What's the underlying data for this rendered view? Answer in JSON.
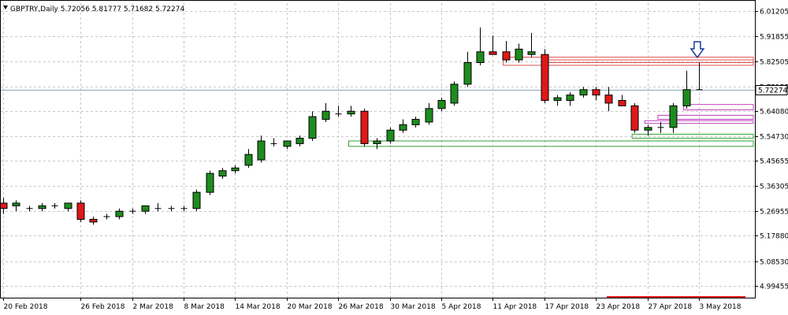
{
  "chart_data": {
    "type": "candlestick",
    "title": "GBPTRY,Daily  5.72056 5.81777 5.71682 5.72274",
    "last_price_label": "5.72274",
    "colors": {
      "background": "#ffffff",
      "grid": "#c8c8c8",
      "bull_fill": "#1e8c1e",
      "bear_fill": "#e01818",
      "wick": "#000000",
      "price_line": "#8fa8b8",
      "zone_red": "#e05050",
      "zone_magenta": "#c040c0",
      "zone_green": "#30a030",
      "bottom_line": "#e01818",
      "arrow": "#1a3ca0"
    },
    "ylim": [
      4.95,
      6.04
    ],
    "y_ticks": [
      "6.01205",
      "5.91855",
      "5.82505",
      "5.73155",
      "5.64080",
      "5.54730",
      "5.45655",
      "5.36305",
      "5.26955",
      "5.17880",
      "5.08530",
      "4.99455"
    ],
    "y_tick_values": [
      6.01205,
      5.91855,
      5.82505,
      5.73155,
      5.6408,
      5.5473,
      5.45655,
      5.36305,
      5.26955,
      5.1788,
      5.0853,
      4.99455
    ],
    "x_labels": [
      {
        "index": 0,
        "label": "20 Feb 2018"
      },
      {
        "index": 6,
        "label": "26 Feb 2018"
      },
      {
        "index": 10,
        "label": "2 Mar 2018"
      },
      {
        "index": 14,
        "label": "8 Mar 2018"
      },
      {
        "index": 18,
        "label": "14 Mar 2018"
      },
      {
        "index": 22,
        "label": "20 Mar 2018"
      },
      {
        "index": 26,
        "label": "26 Mar 2018"
      },
      {
        "index": 30,
        "label": "30 Mar 2018"
      },
      {
        "index": 34,
        "label": "5 Apr 2018"
      },
      {
        "index": 38,
        "label": "11 Apr 2018"
      },
      {
        "index": 42,
        "label": "17 Apr 2018"
      },
      {
        "index": 46,
        "label": "23 Apr 2018"
      },
      {
        "index": 50,
        "label": "27 Apr 2018"
      },
      {
        "index": 54,
        "label": "3 May 2018"
      }
    ],
    "candles": [
      {
        "o": 5.3,
        "h": 5.32,
        "l": 5.26,
        "c": 5.28
      },
      {
        "o": 5.29,
        "h": 5.31,
        "l": 5.27,
        "c": 5.3
      },
      {
        "o": 5.28,
        "h": 5.29,
        "l": 5.27,
        "c": 5.28
      },
      {
        "o": 5.28,
        "h": 5.3,
        "l": 5.27,
        "c": 5.29
      },
      {
        "o": 5.29,
        "h": 5.3,
        "l": 5.28,
        "c": 5.29
      },
      {
        "o": 5.28,
        "h": 5.3,
        "l": 5.27,
        "c": 5.3
      },
      {
        "o": 5.3,
        "h": 5.31,
        "l": 5.23,
        "c": 5.24
      },
      {
        "o": 5.24,
        "h": 5.25,
        "l": 5.22,
        "c": 5.23
      },
      {
        "o": 5.25,
        "h": 5.26,
        "l": 5.24,
        "c": 5.25
      },
      {
        "o": 5.25,
        "h": 5.28,
        "l": 5.24,
        "c": 5.27
      },
      {
        "o": 5.27,
        "h": 5.28,
        "l": 5.26,
        "c": 5.27
      },
      {
        "o": 5.27,
        "h": 5.29,
        "l": 5.26,
        "c": 5.29
      },
      {
        "o": 5.28,
        "h": 5.3,
        "l": 5.27,
        "c": 5.28
      },
      {
        "o": 5.28,
        "h": 5.29,
        "l": 5.27,
        "c": 5.28
      },
      {
        "o": 5.28,
        "h": 5.29,
        "l": 5.27,
        "c": 5.28
      },
      {
        "o": 5.28,
        "h": 5.35,
        "l": 5.27,
        "c": 5.34
      },
      {
        "o": 5.34,
        "h": 5.42,
        "l": 5.33,
        "c": 5.41
      },
      {
        "o": 5.4,
        "h": 5.43,
        "l": 5.39,
        "c": 5.42
      },
      {
        "o": 5.42,
        "h": 5.44,
        "l": 5.41,
        "c": 5.43
      },
      {
        "o": 5.44,
        "h": 5.5,
        "l": 5.43,
        "c": 5.48
      },
      {
        "o": 5.46,
        "h": 5.55,
        "l": 5.45,
        "c": 5.53
      },
      {
        "o": 5.52,
        "h": 5.54,
        "l": 5.51,
        "c": 5.52
      },
      {
        "o": 5.51,
        "h": 5.53,
        "l": 5.5,
        "c": 5.53
      },
      {
        "o": 5.52,
        "h": 5.55,
        "l": 5.51,
        "c": 5.54
      },
      {
        "o": 5.54,
        "h": 5.64,
        "l": 5.53,
        "c": 5.62
      },
      {
        "o": 5.61,
        "h": 5.67,
        "l": 5.6,
        "c": 5.64
      },
      {
        "o": 5.63,
        "h": 5.66,
        "l": 5.62,
        "c": 5.63
      },
      {
        "o": 5.63,
        "h": 5.66,
        "l": 5.62,
        "c": 5.64
      },
      {
        "o": 5.64,
        "h": 5.65,
        "l": 5.51,
        "c": 5.52
      },
      {
        "o": 5.52,
        "h": 5.54,
        "l": 5.5,
        "c": 5.53
      },
      {
        "o": 5.53,
        "h": 5.58,
        "l": 5.52,
        "c": 5.57
      },
      {
        "o": 5.57,
        "h": 5.61,
        "l": 5.56,
        "c": 5.59
      },
      {
        "o": 5.59,
        "h": 5.62,
        "l": 5.58,
        "c": 5.61
      },
      {
        "o": 5.6,
        "h": 5.67,
        "l": 5.59,
        "c": 5.65
      },
      {
        "o": 5.65,
        "h": 5.69,
        "l": 5.64,
        "c": 5.68
      },
      {
        "o": 5.67,
        "h": 5.75,
        "l": 5.66,
        "c": 5.74
      },
      {
        "o": 5.74,
        "h": 5.86,
        "l": 5.73,
        "c": 5.82
      },
      {
        "o": 5.82,
        "h": 5.95,
        "l": 5.81,
        "c": 5.86
      },
      {
        "o": 5.86,
        "h": 5.92,
        "l": 5.85,
        "c": 5.85
      },
      {
        "o": 5.86,
        "h": 5.9,
        "l": 5.82,
        "c": 5.83
      },
      {
        "o": 5.83,
        "h": 5.89,
        "l": 5.82,
        "c": 5.87
      },
      {
        "o": 5.85,
        "h": 5.93,
        "l": 5.84,
        "c": 5.86
      },
      {
        "o": 5.85,
        "h": 5.87,
        "l": 5.67,
        "c": 5.68
      },
      {
        "o": 5.68,
        "h": 5.7,
        "l": 5.66,
        "c": 5.69
      },
      {
        "o": 5.68,
        "h": 5.71,
        "l": 5.66,
        "c": 5.7
      },
      {
        "o": 5.7,
        "h": 5.73,
        "l": 5.69,
        "c": 5.72
      },
      {
        "o": 5.72,
        "h": 5.73,
        "l": 5.68,
        "c": 5.7
      },
      {
        "o": 5.7,
        "h": 5.73,
        "l": 5.64,
        "c": 5.67
      },
      {
        "o": 5.68,
        "h": 5.7,
        "l": 5.66,
        "c": 5.66
      },
      {
        "o": 5.66,
        "h": 5.67,
        "l": 5.56,
        "c": 5.57
      },
      {
        "o": 5.57,
        "h": 5.59,
        "l": 5.55,
        "c": 5.58
      },
      {
        "o": 5.58,
        "h": 5.6,
        "l": 5.56,
        "c": 5.58
      },
      {
        "o": 5.58,
        "h": 5.67,
        "l": 5.56,
        "c": 5.66
      },
      {
        "o": 5.66,
        "h": 5.79,
        "l": 5.65,
        "c": 5.72
      },
      {
        "o": 5.72,
        "h": 5.82,
        "l": 5.72,
        "c": 5.72
      }
    ],
    "zones": [
      {
        "color": "red",
        "start": 39,
        "y_top": 5.84,
        "y_bottom": 5.81
      },
      {
        "color": "red",
        "start": 42,
        "y_top": 5.83,
        "y_bottom": 5.82
      },
      {
        "color": "magenta",
        "start": 53,
        "y_top": 5.665,
        "y_bottom": 5.645
      },
      {
        "color": "magenta",
        "start": 51,
        "y_top": 5.625,
        "y_bottom": 5.61
      },
      {
        "color": "magenta",
        "start": 50,
        "y_top": 5.605,
        "y_bottom": 5.595
      },
      {
        "color": "green",
        "start": 49,
        "y_top": 5.555,
        "y_bottom": 5.54
      },
      {
        "color": "green",
        "start": 27,
        "y_top": 5.53,
        "y_bottom": 5.51
      }
    ]
  }
}
